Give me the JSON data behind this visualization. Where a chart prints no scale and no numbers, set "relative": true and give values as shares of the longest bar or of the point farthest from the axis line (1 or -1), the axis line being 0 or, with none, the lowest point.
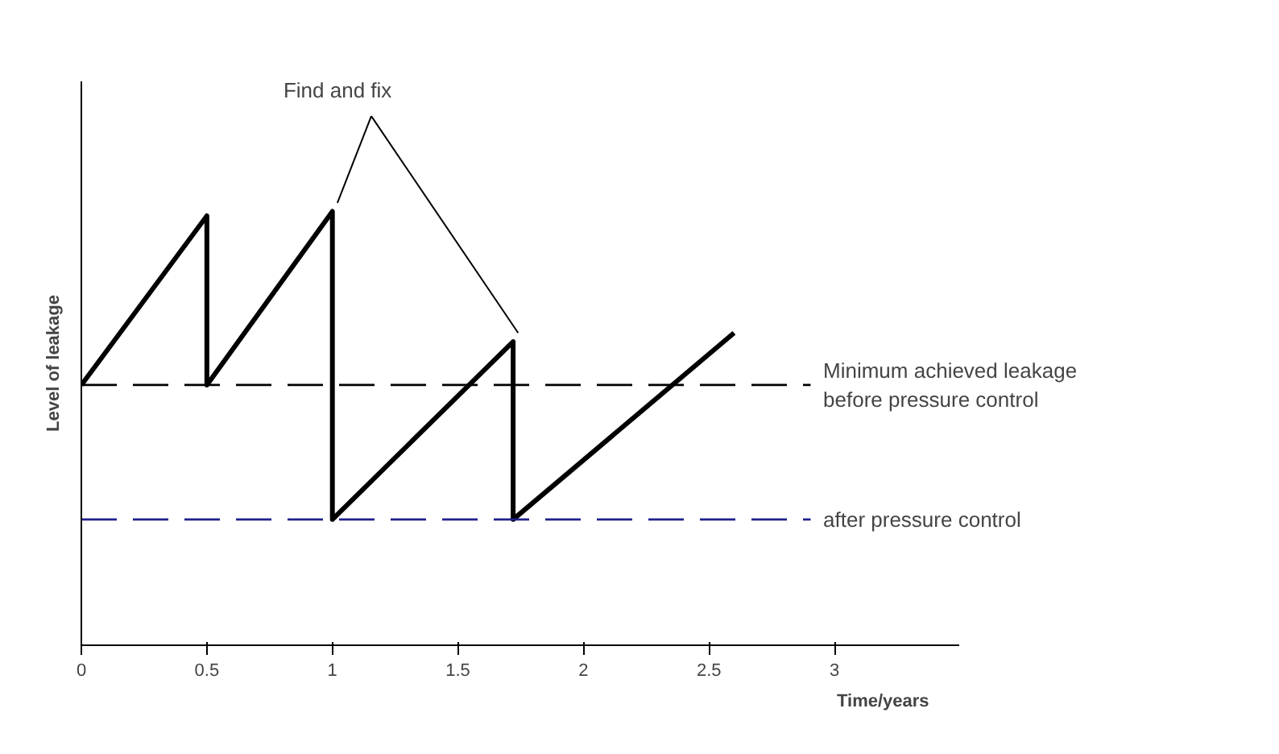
{
  "chart_data": {
    "type": "line",
    "relative": true,
    "xlabel": "Time/years",
    "ylabel": "Level of leakage",
    "x": [
      0,
      0.5,
      0.5,
      1.0,
      1.0,
      1.72,
      1.72,
      2.6
    ],
    "series": [
      {
        "color": "#000000",
        "values": [
          0.6,
          0.99,
          0.6,
          1.0,
          0.29,
          0.7,
          0.29,
          0.72
        ]
      }
    ],
    "xlim": [
      0,
      3.5
    ],
    "xticks": [
      0,
      0.5,
      1,
      1.5,
      2,
      2.5,
      3
    ],
    "tick_labels": "x",
    "grid": false,
    "marker": "none",
    "line_style": "solid",
    "ref_lines": [
      {
        "axis": "y",
        "value": 0.6,
        "label": "Minimum achieved leakage\nbefore pressure control",
        "color": "#000000",
        "line_style": "dashed"
      },
      {
        "axis": "y",
        "value": 0.29,
        "label": "after pressure control",
        "color": "#1f1f8f",
        "line_style": "dashed"
      }
    ],
    "annotations": [
      "Find and fix"
    ]
  }
}
